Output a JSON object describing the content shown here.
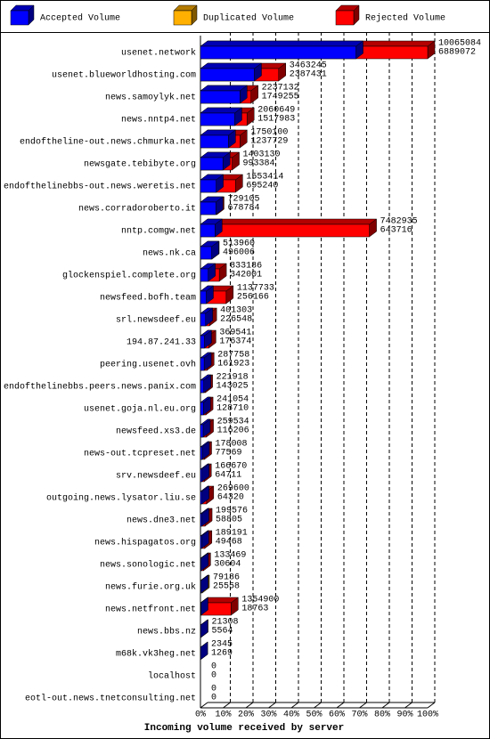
{
  "chart_data": {
    "type": "bar3d",
    "title": "Incoming volume received by server",
    "legend": [
      {
        "name": "Accepted Volume",
        "color": "#0000ff"
      },
      {
        "name": "Duplicated Volume",
        "color": "#ffb000"
      },
      {
        "name": "Rejected Volume",
        "color": "#ff0000"
      }
    ],
    "categories": [
      "usenet.network",
      "usenet.blueworldhosting.com",
      "news.samoylyk.net",
      "news.nntp4.net",
      "endoftheline-out.news.chmurka.net",
      "newsgate.tebibyte.org",
      "endofthelinebbs-out.news.weretis.net",
      "news.corradoroberto.it",
      "nntp.comgw.net",
      "news.nk.ca",
      "glockenspiel.complete.org",
      "newsfeed.bofh.team",
      "srl.newsdeef.eu",
      "194.87.241.33",
      "peering.usenet.ovh",
      "endofthelinebbs.peers.news.panix.com",
      "usenet.goja.nl.eu.org",
      "newsfeed.xs3.de",
      "news-out.tcpreset.net",
      "srv.newsdeef.eu",
      "outgoing.news.lysator.liu.se",
      "news.dne3.net",
      "news.hispagatos.org",
      "news.sonologic.net",
      "news.furie.org.uk",
      "news.netfront.net",
      "news.bbs.nz",
      "m68k.vk3heg.net",
      "localhost",
      "eotl-out.news.tnetconsulting.net"
    ],
    "values": [
      10065084,
      3463245,
      2237132,
      2060649,
      1750100,
      1403130,
      1553414,
      729105,
      7482935,
      513960,
      833186,
      1137733,
      401303,
      369541,
      287758,
      221918,
      241054,
      259534,
      178008,
      166670,
      269600,
      199576,
      189191,
      133469,
      79186,
      1354900,
      21308,
      2345,
      0,
      0
    ],
    "accepted": [
      6889072,
      2387431,
      1749255,
      1517983,
      1237729,
      993384,
      695240,
      678784,
      643716,
      496006,
      342001,
      256166,
      226548,
      176374,
      161923,
      143025,
      128710,
      116206,
      77569,
      64711,
      64320,
      58805,
      49468,
      30604,
      25558,
      18763,
      5564,
      1269,
      0,
      0
    ],
    "colors": [
      "#ff0000",
      "#ff0000",
      "#ff0000",
      "#ff0000",
      "#ff0000",
      "#ff0000",
      "#ff0000",
      "#ff0000",
      "#ff0000",
      "#ff0000",
      "#ff0000",
      "#ff0000",
      "#ff0000",
      "#ff0000",
      "#ff0000",
      "#ff0000",
      "#ff0000",
      "#ff0000",
      "#ff0000",
      "#ff0000",
      "#ff0000",
      "#ff0000",
      "#ff0000",
      "#ff0000",
      "#ffb000",
      "#ff0000",
      "#ff0000",
      "#ffb000",
      "#ff0000",
      "#ff0000"
    ],
    "accepted_color": "#0000ff",
    "xlim": [
      0,
      10065084
    ],
    "xticks": [
      {
        "value": 0,
        "label": "0%"
      },
      {
        "value": 1006508.4,
        "label": "10%"
      },
      {
        "value": 2013016.8,
        "label": "20%"
      },
      {
        "value": 3019525.2,
        "label": "30%"
      },
      {
        "value": 4026033.6,
        "label": "40%"
      },
      {
        "value": 5032542,
        "label": "50%"
      },
      {
        "value": 6039050.4,
        "label": "60%"
      },
      {
        "value": 7045558.8,
        "label": "70%"
      },
      {
        "value": 8052067.2,
        "label": "80%"
      },
      {
        "value": 9058575.6,
        "label": "90%"
      },
      {
        "value": 10065084,
        "label": "100%"
      }
    ],
    "grid": true
  }
}
